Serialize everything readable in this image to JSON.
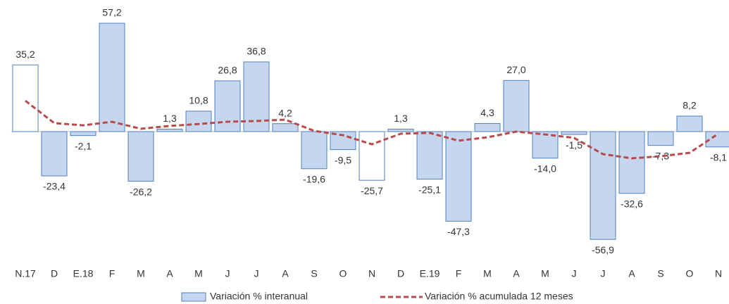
{
  "chart_data": {
    "type": "bar-line",
    "categories": [
      "N.17",
      "D",
      "E.18",
      "F",
      "M",
      "A",
      "M",
      "J",
      "J",
      "A",
      "S",
      "O",
      "N",
      "D",
      "E.19",
      "F",
      "M",
      "A",
      "M",
      "J",
      "J",
      "A",
      "S",
      "O",
      "N"
    ],
    "ylim": [
      -65,
      60
    ],
    "series": [
      {
        "name": "Variación % interanual",
        "type": "bar",
        "color": "#c6d6ef",
        "edge_color": "#4f81bd",
        "colors": [
          "#ffffff",
          "#c6d6ef",
          "#c6d6ef",
          "#c6d6ef",
          "#c6d6ef",
          "#c6d6ef",
          "#c6d6ef",
          "#c6d6ef",
          "#c6d6ef",
          "#c6d6ef",
          "#c6d6ef",
          "#c6d6ef",
          "#ffffff",
          "#c6d6ef",
          "#c6d6ef",
          "#c6d6ef",
          "#c6d6ef",
          "#c6d6ef",
          "#c6d6ef",
          "#c6d6ef",
          "#c6d6ef",
          "#c6d6ef",
          "#c6d6ef",
          "#c6d6ef",
          "#c6d6ef"
        ],
        "values": [
          35.2,
          -23.4,
          -2.1,
          57.2,
          -26.2,
          1.3,
          10.8,
          26.8,
          36.8,
          4.2,
          -19.6,
          -9.5,
          -25.7,
          1.3,
          -25.1,
          -47.3,
          4.3,
          27.0,
          -14.0,
          -1.5,
          -56.9,
          -32.6,
          -7.3,
          8.2,
          -8.1
        ],
        "value_labels": [
          "35,2",
          "-23,4",
          "-2,1",
          "57,2",
          "-26,2",
          "1,3",
          "10,8",
          "26,8",
          "36,8",
          "4,2",
          "-19,6",
          "-9,5",
          "-25,7",
          "1,3",
          "-25,1",
          "-47,3",
          "4,3",
          "27,0",
          "-14,0",
          "-1,5",
          "-56,9",
          "-32,6",
          "-7,3",
          "8,2",
          "-8,1"
        ]
      },
      {
        "name": "Variación % acumulada 12 meses",
        "type": "line",
        "color": "#b84a4a",
        "dashed": true,
        "values": [
          16.3,
          4.5,
          3.3,
          5.2,
          1.5,
          3.0,
          4.0,
          5.2,
          5.6,
          6.3,
          0.4,
          -1.9,
          -6.7,
          -1.1,
          -0.7,
          -4.8,
          -3.0,
          0.0,
          -1.5,
          -3.3,
          -11.9,
          -14.1,
          -13.0,
          -11.2,
          -1.1
        ]
      }
    ]
  }
}
